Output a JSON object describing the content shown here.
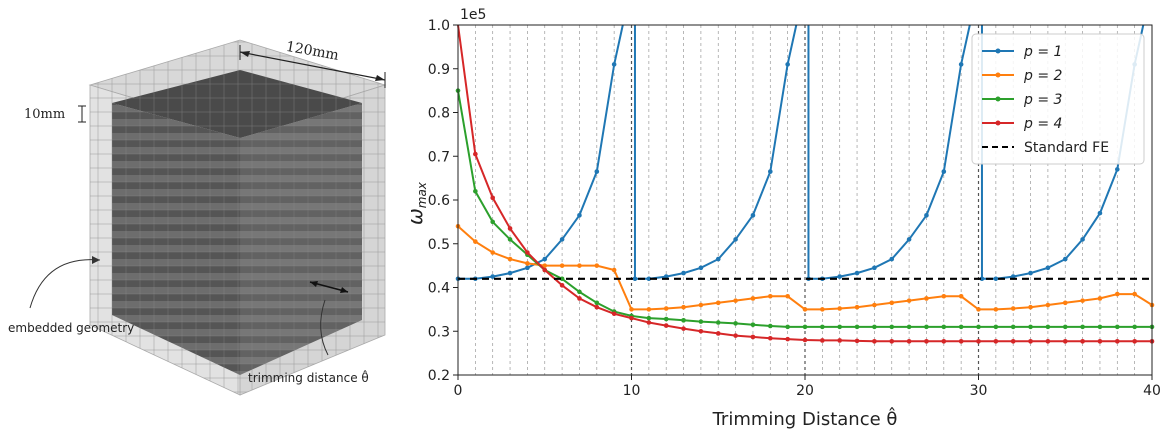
{
  "left_figure": {
    "dimension_top": "120mm",
    "dimension_side": "10mm",
    "label_embedded": "embedded geometry",
    "label_trimming": "trimming distance  θ̂"
  },
  "chart_data": {
    "type": "line",
    "xlabel": "Trimming Distance θ̂",
    "ylabel": "ω",
    "ylabel_sub": "max",
    "y_multiplier": "1e5",
    "xlim": [
      0,
      40
    ],
    "ylim": [
      0.2,
      1.0
    ],
    "x_ticks": [
      0,
      10,
      20,
      30,
      40
    ],
    "y_ticks": [
      0.2,
      0.3,
      0.4,
      0.5,
      0.6,
      0.7,
      0.8,
      0.9,
      1.0
    ],
    "grid": "vertical dashed lines at integer x",
    "legend_position": "top-right",
    "series": [
      {
        "name": "p = 1",
        "color": "#1f77b4",
        "x": [
          0,
          1,
          2,
          3,
          4,
          5,
          6,
          7,
          8,
          9,
          9.5,
          10,
          10.2,
          11,
          12,
          13,
          14,
          15,
          16,
          17,
          18,
          19,
          19.5,
          20,
          20.2,
          21,
          22,
          23,
          24,
          25,
          26,
          27,
          28,
          29,
          29.5,
          30,
          30.2,
          31,
          32,
          33,
          34,
          35,
          36,
          37,
          38,
          39,
          39.5
        ],
        "y": [
          0.42,
          0.42,
          0.425,
          0.433,
          0.445,
          0.465,
          0.51,
          0.565,
          0.665,
          0.91,
          1.0,
          null,
          0.42,
          0.42,
          0.425,
          0.433,
          0.445,
          0.465,
          0.51,
          0.565,
          0.665,
          0.91,
          1.0,
          null,
          0.42,
          0.42,
          0.425,
          0.433,
          0.445,
          0.465,
          0.51,
          0.565,
          0.665,
          0.91,
          1.0,
          null,
          0.42,
          0.42,
          0.425,
          0.433,
          0.445,
          0.465,
          0.51,
          0.57,
          0.67,
          0.91,
          1.0
        ]
      },
      {
        "name": "p = 2",
        "color": "#ff7f0e",
        "x": [
          0,
          1,
          2,
          3,
          4,
          5,
          6,
          7,
          8,
          9,
          10,
          11,
          12,
          13,
          14,
          15,
          16,
          17,
          18,
          19,
          20,
          21,
          22,
          23,
          24,
          25,
          26,
          27,
          28,
          29,
          30,
          31,
          32,
          33,
          34,
          35,
          36,
          37,
          38,
          39,
          40
        ],
        "y": [
          0.54,
          0.505,
          0.48,
          0.465,
          0.455,
          0.45,
          0.45,
          0.45,
          0.45,
          0.44,
          0.35,
          0.35,
          0.352,
          0.355,
          0.36,
          0.365,
          0.37,
          0.375,
          0.38,
          0.38,
          0.35,
          0.35,
          0.352,
          0.355,
          0.36,
          0.365,
          0.37,
          0.375,
          0.38,
          0.38,
          0.35,
          0.35,
          0.352,
          0.355,
          0.36,
          0.365,
          0.37,
          0.375,
          0.385,
          0.385,
          0.36
        ]
      },
      {
        "name": "p = 3",
        "color": "#2ca02c",
        "x": [
          0,
          1,
          2,
          3,
          4,
          5,
          6,
          7,
          8,
          9,
          10,
          11,
          12,
          13,
          14,
          15,
          16,
          17,
          18,
          19,
          20,
          21,
          22,
          23,
          24,
          25,
          26,
          27,
          28,
          29,
          30,
          31,
          32,
          33,
          34,
          35,
          36,
          37,
          38,
          39,
          40
        ],
        "y": [
          0.85,
          0.62,
          0.55,
          0.51,
          0.475,
          0.44,
          0.42,
          0.39,
          0.365,
          0.345,
          0.335,
          0.33,
          0.328,
          0.325,
          0.322,
          0.32,
          0.318,
          0.315,
          0.312,
          0.31,
          0.31,
          0.31,
          0.31,
          0.31,
          0.31,
          0.31,
          0.31,
          0.31,
          0.31,
          0.31,
          0.31,
          0.31,
          0.31,
          0.31,
          0.31,
          0.31,
          0.31,
          0.31,
          0.31,
          0.31,
          0.31
        ]
      },
      {
        "name": "p = 4",
        "color": "#d62728",
        "x": [
          0,
          1,
          2,
          3,
          4,
          5,
          6,
          7,
          8,
          9,
          10,
          11,
          12,
          13,
          14,
          15,
          16,
          17,
          18,
          19,
          20,
          21,
          22,
          23,
          24,
          25,
          26,
          27,
          28,
          29,
          30,
          31,
          32,
          33,
          34,
          35,
          36,
          37,
          38,
          39,
          40
        ],
        "y": [
          1.0,
          0.705,
          0.605,
          0.535,
          0.48,
          0.44,
          0.405,
          0.375,
          0.355,
          0.34,
          0.33,
          0.32,
          0.313,
          0.306,
          0.3,
          0.295,
          0.29,
          0.287,
          0.284,
          0.282,
          0.28,
          0.279,
          0.279,
          0.278,
          0.277,
          0.277,
          0.277,
          0.277,
          0.277,
          0.277,
          0.277,
          0.277,
          0.277,
          0.277,
          0.277,
          0.277,
          0.277,
          0.277,
          0.277,
          0.277,
          0.277
        ]
      },
      {
        "name": "Standard FE",
        "color": "#000000",
        "dashed": true,
        "x": [
          0,
          40
        ],
        "y": [
          0.42,
          0.42
        ]
      }
    ]
  }
}
